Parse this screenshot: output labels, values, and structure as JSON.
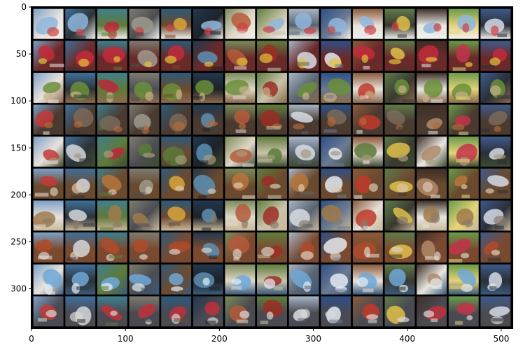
{
  "chart_data": {
    "type": "heatmap",
    "title": "",
    "xlabel": "",
    "ylabel": "",
    "xlim": [
      0,
      512
    ],
    "ylim": [
      342,
      0
    ],
    "grid": false,
    "x_ticks": [
      0,
      100,
      200,
      300,
      400,
      500
    ],
    "y_ticks": [
      0,
      50,
      100,
      150,
      200,
      250,
      300
    ],
    "image_grid": {
      "rows": 10,
      "cols": 15,
      "cell_size": 32,
      "border": 2,
      "border_color": "#000000",
      "column_palettes": [
        [
          "#7da0c8",
          "#c33a3a",
          "#e8e2dc"
        ],
        [
          "#3f6f9a",
          "#d6d8da",
          "#2e3338"
        ],
        [
          "#3f7f8c",
          "#b82a3a",
          "#5f7a3a"
        ],
        [
          "#7d7b70",
          "#9e9a8e",
          "#4b4d52"
        ],
        [
          "#2c5a7a",
          "#d9a43a",
          "#6f4a2e"
        ],
        [
          "#22384e",
          "#5d8fb3",
          "#1d2228"
        ],
        [
          "#7a8a5a",
          "#b55a3a",
          "#e0d8c8"
        ],
        [
          "#5f7d3c",
          "#9b2e24",
          "#c9c3a8"
        ],
        [
          "#a6b4c4",
          "#d8dde4",
          "#5a6470"
        ],
        [
          "#2e4f86",
          "#e4e9f0",
          "#6a7a92"
        ],
        [
          "#8a5a3a",
          "#c0392b",
          "#e6e1da"
        ],
        [
          "#5e7a4a",
          "#e0c04a",
          "#3a3a30"
        ],
        [
          "#3e2e28",
          "#b08a6a",
          "#e8e6e0"
        ],
        [
          "#6a9a4a",
          "#c4344a",
          "#e4d27a"
        ],
        [
          "#3f5a8a",
          "#d6dbe6",
          "#2a2f38"
        ]
      ],
      "row_palettes": [
        [
          "#8fb6dc",
          "#d04040",
          "#f0f0ee"
        ],
        [
          "#c42a3a",
          "#e2c23a",
          "#6a2a2a"
        ],
        [
          "#6b8f3a",
          "#c9b08a",
          "#8a6a4a"
        ],
        [
          "#7a6a5a",
          "#b06a3a",
          "#4a3a30"
        ],
        [
          "#5a7a3a",
          "#a89a7a",
          "#3e4a30"
        ],
        [
          "#b8743a",
          "#d8c8b0",
          "#6a4a2e"
        ],
        [
          "#a07a4a",
          "#8a7a6a",
          "#c8b89a"
        ],
        [
          "#b04a2a",
          "#d8d0c4",
          "#7a4a30"
        ],
        [
          "#6fa8d8",
          "#e8eef4",
          "#3a5a7a"
        ],
        [
          "#c0303a",
          "#d8d8d8",
          "#4a4a52"
        ]
      ]
    }
  }
}
